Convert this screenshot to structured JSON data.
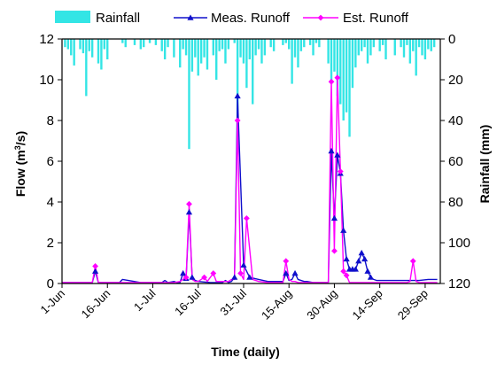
{
  "chart_data": {
    "type": "line",
    "xlabel": "Time (daily)",
    "ylabel": "Flow (m³/s)",
    "ylabel_main": "Flow (m",
    "ylabel_sup": "3",
    "ylabel_tail": "/s)",
    "y2label": "Rainfall (mm)",
    "xlim": [
      0,
      125
    ],
    "ylim": [
      0,
      12
    ],
    "y2lim": [
      0,
      120
    ],
    "y2_inverted": true,
    "yticks": [
      0,
      2,
      4,
      6,
      8,
      10,
      12
    ],
    "y2ticks": [
      0,
      20,
      40,
      60,
      80,
      100,
      120
    ],
    "xticks": [
      {
        "x": 0,
        "label": "1-Jun"
      },
      {
        "x": 15,
        "label": "16-Jun"
      },
      {
        "x": 30,
        "label": "1-Jul"
      },
      {
        "x": 45,
        "label": "16-Jul"
      },
      {
        "x": 60,
        "label": "31-Jul"
      },
      {
        "x": 75,
        "label": "15-Aug"
      },
      {
        "x": 90,
        "label": "30-Aug"
      },
      {
        "x": 105,
        "label": "14-Sep"
      },
      {
        "x": 120,
        "label": "29-Sep"
      }
    ],
    "legend_position": "top",
    "colors": {
      "rainfall": "#33E5E5",
      "measured": "#1010CC",
      "estimated": "#FF00FF",
      "axis": "#000000"
    },
    "series": [
      {
        "name": "Rainfall",
        "type": "bar",
        "axis": "y2",
        "x": [
          1,
          2,
          3,
          4,
          6,
          7,
          8,
          9,
          10,
          12,
          13,
          14,
          15,
          20,
          21,
          24,
          26,
          27,
          29,
          31,
          33,
          34,
          35,
          37,
          39,
          40,
          41,
          42,
          43,
          44,
          45,
          46,
          47,
          48,
          50,
          51,
          52,
          53,
          54,
          55,
          57,
          58,
          59,
          60,
          61,
          62,
          63,
          64,
          65,
          66,
          67,
          69,
          70,
          73,
          74,
          75,
          76,
          77,
          78,
          79,
          80,
          82,
          83,
          84,
          85,
          88,
          89,
          90,
          91,
          92,
          93,
          94,
          95,
          96,
          97,
          98,
          99,
          100,
          101,
          102,
          103,
          105,
          106,
          107,
          110,
          112,
          113,
          114,
          115,
          116,
          117,
          118,
          119,
          120,
          121,
          122,
          123
        ],
        "values": [
          4,
          5,
          8,
          13,
          5,
          7,
          28,
          6,
          9,
          12,
          15,
          5,
          10,
          2,
          4,
          3,
          5,
          4,
          2,
          3,
          6,
          10,
          4,
          9,
          14,
          5,
          8,
          54,
          16,
          9,
          18,
          12,
          9,
          15,
          8,
          20,
          6,
          5,
          12,
          5,
          2,
          52,
          9,
          12,
          24,
          10,
          32,
          8,
          5,
          12,
          8,
          4,
          6,
          3,
          2,
          5,
          22,
          9,
          14,
          6,
          4,
          3,
          8,
          2,
          4,
          12,
          20,
          16,
          28,
          32,
          40,
          36,
          48,
          24,
          14,
          8,
          6,
          4,
          12,
          8,
          4,
          6,
          3,
          10,
          8,
          4,
          9,
          3,
          12,
          6,
          18,
          4,
          8,
          10,
          5,
          6,
          4
        ]
      },
      {
        "name": "Meas. Runoff",
        "type": "line",
        "axis": "y",
        "marker": "triangle",
        "x": [
          0,
          5,
          10,
          11,
          12,
          15,
          17,
          18,
          19,
          20,
          26,
          30,
          33,
          34,
          35,
          37,
          38,
          39,
          40,
          41,
          42,
          43,
          44,
          45,
          49,
          51,
          53,
          54,
          55,
          56,
          57,
          58,
          60,
          62,
          65,
          68,
          73,
          74,
          75,
          76,
          77,
          78,
          80,
          81,
          83,
          86,
          88,
          89,
          90,
          91,
          92,
          93,
          94,
          95,
          96,
          97,
          98,
          99,
          100,
          101,
          102,
          103,
          104,
          105,
          106,
          107,
          108,
          109,
          110,
          112,
          115,
          118,
          121,
          124
        ],
        "values": [
          0.05,
          0.05,
          0.05,
          0.6,
          0.05,
          0.05,
          0.05,
          0.05,
          0.05,
          0.2,
          0.05,
          0.05,
          0.05,
          0.15,
          0.05,
          0.1,
          0.05,
          0.05,
          0.5,
          0.25,
          3.5,
          0.3,
          0.15,
          0.1,
          0.05,
          0.05,
          0.05,
          0.15,
          0.05,
          0.1,
          0.3,
          9.2,
          0.9,
          0.3,
          0.2,
          0.1,
          0.1,
          0.5,
          0.15,
          0.2,
          0.5,
          0.2,
          0.1,
          0.1,
          0.05,
          0.05,
          0.05,
          6.5,
          3.2,
          6.3,
          5.4,
          2.6,
          1.2,
          0.7,
          0.7,
          0.7,
          1.1,
          1.5,
          1.2,
          0.6,
          0.3,
          0.2,
          0.15,
          0.15,
          0.15,
          0.15,
          0.15,
          0.15,
          0.15,
          0.15,
          0.15,
          0.15,
          0.2,
          0.2
        ]
      },
      {
        "name": "Est. Runoff",
        "type": "line",
        "axis": "y",
        "marker": "diamond",
        "x": [
          0,
          5,
          10,
          11,
          12,
          15,
          18,
          20,
          22,
          25,
          28,
          30,
          33,
          35,
          37,
          39,
          40,
          41,
          42,
          43,
          44,
          45,
          47,
          48,
          50,
          51,
          53,
          55,
          56,
          57,
          58,
          59,
          60,
          61,
          63,
          65,
          68,
          71,
          73,
          74,
          75,
          76,
          77,
          78,
          80,
          83,
          86,
          88,
          89,
          90,
          91,
          92,
          93,
          94,
          95,
          96,
          97,
          98,
          99,
          100,
          101,
          102,
          104,
          106,
          108,
          110,
          112,
          114,
          115,
          116,
          117,
          118,
          119,
          121,
          124
        ],
        "values": [
          0.05,
          0.05,
          0.05,
          0.85,
          0.05,
          0.05,
          0.05,
          0.05,
          0.05,
          0.05,
          0.05,
          0.05,
          0.05,
          0.05,
          0.05,
          0.1,
          0.2,
          0.3,
          3.9,
          0.2,
          0.1,
          0.1,
          0.3,
          0.1,
          0.5,
          0.1,
          0.1,
          0.1,
          0.2,
          0.2,
          8.0,
          0.5,
          0.2,
          3.2,
          0.2,
          0.1,
          0.05,
          0.05,
          0.05,
          1.1,
          0.2,
          0.1,
          0.1,
          0.05,
          0.05,
          0.05,
          0.05,
          0.05,
          9.9,
          1.6,
          10.1,
          5.5,
          0.6,
          0.4,
          0.05,
          0.05,
          0.05,
          0.05,
          0.05,
          0.05,
          0.05,
          0.05,
          0.05,
          0.05,
          0.05,
          0.05,
          0.05,
          0.05,
          0.1,
          1.1,
          0.1,
          0.05,
          0.05,
          0.05,
          0.05
        ]
      }
    ]
  }
}
